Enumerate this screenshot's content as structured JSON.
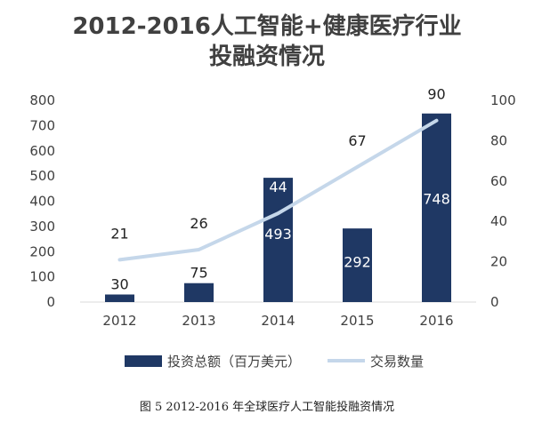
{
  "chart_data": {
    "type": "bar",
    "title_line1": "2012-2016人工智能+健康医疗行业",
    "title_line2": "投融资情况",
    "categories": [
      "2012",
      "2013",
      "2014",
      "2015",
      "2016"
    ],
    "series": [
      {
        "name": "投资总额（百万美元）",
        "type": "bar",
        "axis": "left",
        "values": [
          30,
          75,
          493,
          292,
          748
        ],
        "labels": [
          "30",
          "75",
          "493",
          "292",
          "748"
        ]
      },
      {
        "name": "交易数量",
        "type": "line",
        "axis": "right",
        "values": [
          21,
          26,
          44,
          67,
          90
        ],
        "labels": [
          "21",
          "26",
          "44",
          "67",
          "90"
        ]
      }
    ],
    "y_left": {
      "min": 0,
      "max": 800,
      "ticks": [
        "0",
        "100",
        "200",
        "300",
        "400",
        "500",
        "600",
        "700",
        "800"
      ]
    },
    "y_right": {
      "min": 0,
      "max": 100,
      "ticks": [
        "0",
        "20",
        "40",
        "60",
        "80",
        "100"
      ]
    },
    "grid": false,
    "legend_position": "bottom",
    "colors": {
      "bar": "#1f3864",
      "line": "#c5d7ea",
      "text": "#404040"
    }
  },
  "caption": "图 5 2012-2016 年全球医疗人工智能投融资情况"
}
